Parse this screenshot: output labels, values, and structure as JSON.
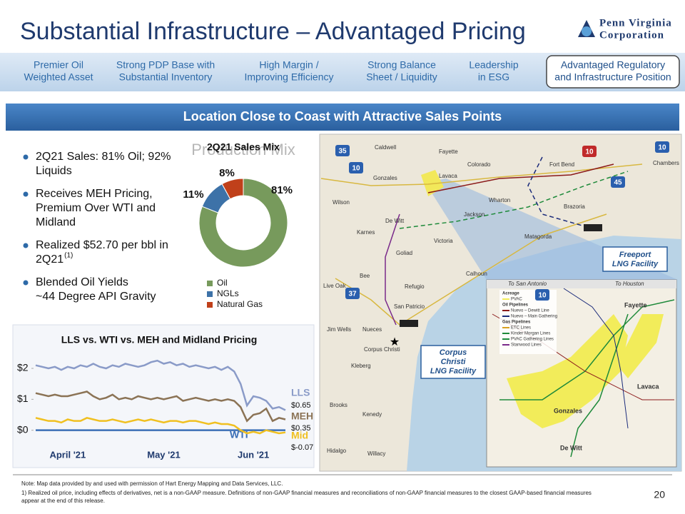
{
  "header": {
    "title": "Substantial Infrastructure – Advantaged Pricing",
    "logo": [
      "Penn Virginia",
      "Corporation"
    ]
  },
  "tabs": [
    [
      "Premier Oil",
      "Weighted Asset"
    ],
    [
      "Strong PDP Base with",
      "Substantial Inventory"
    ],
    [
      "High Margin /",
      "Improving Efficiency"
    ],
    [
      "Strong Balance",
      "Sheet / Liquidity"
    ],
    [
      "Leadership",
      "in ESG"
    ],
    [
      "Advantaged Regulatory",
      "and Infrastructure Position"
    ]
  ],
  "banner": "Location Close to Coast with Attractive Sales Points",
  "bullets": [
    [
      "2Q21 Sales: 81% Oil;   92%",
      "Liquids"
    ],
    [
      "Receives MEH Pricing,",
      "Premium Over WTI and",
      "Midland"
    ],
    [
      "Realized $52.70 per bbl in",
      "2Q21"
    ],
    [
      "Blended Oil Yields",
      "~44 Degree API Gravity"
    ]
  ],
  "bullet_footnote": "(1)",
  "chart_data": [
    {
      "type": "pie",
      "title": "2Q21 Sales Mix",
      "ghost_title": "Production Mix",
      "categories": [
        "Oil",
        "NGLs",
        "Natural Gas"
      ],
      "values": [
        81,
        11,
        8
      ],
      "value_labels": [
        "81%",
        "11%",
        "8%"
      ],
      "colors": [
        "#779a5c",
        "#3d72a8",
        "#c0401a"
      ]
    },
    {
      "type": "line",
      "title": "LLS vs. WTI vs. MEH and Midland Pricing",
      "categories": [
        null,
        null,
        null,
        null,
        null,
        "April '21",
        null,
        null,
        null,
        null,
        null,
        null,
        null,
        null,
        null,
        null,
        null,
        null,
        null,
        null,
        "May '21",
        null,
        null,
        null,
        null,
        null,
        null,
        null,
        null,
        null,
        null,
        null,
        null,
        null,
        "Jun '21",
        null,
        null,
        null,
        null,
        null
      ],
      "ylim": [
        -0.4,
        2.6
      ],
      "yticks": [
        {
          "value": 0,
          "label": "$0"
        },
        {
          "value": 1,
          "label": "$1"
        },
        {
          "value": 2,
          "label": "$2"
        }
      ],
      "series": [
        {
          "name": "LLS",
          "color": "#8a9bc8",
          "last_label": "$0.65",
          "values": [
            2.1,
            2.05,
            2.0,
            2.05,
            1.95,
            2.05,
            2.0,
            2.1,
            2.05,
            2.15,
            2.05,
            2.0,
            2.1,
            2.05,
            2.15,
            2.1,
            2.05,
            2.1,
            2.2,
            2.25,
            2.15,
            2.2,
            2.1,
            2.15,
            2.05,
            2.1,
            2.05,
            2.0,
            2.05,
            1.95,
            2.05,
            1.9,
            1.5,
            0.8,
            1.1,
            1.05,
            0.95,
            0.7,
            0.75,
            0.65
          ]
        },
        {
          "name": "MEH",
          "color": "#8b7355",
          "last_label": "$0.35",
          "values": [
            1.2,
            1.15,
            1.1,
            1.15,
            1.1,
            1.1,
            1.15,
            1.2,
            1.25,
            1.1,
            1.0,
            1.05,
            1.15,
            1.0,
            1.05,
            1.0,
            1.1,
            1.05,
            1.0,
            1.05,
            1.0,
            1.05,
            1.1,
            0.95,
            1.0,
            1.05,
            1.0,
            0.95,
            1.0,
            0.95,
            1.0,
            0.95,
            0.75,
            0.3,
            0.5,
            0.55,
            0.7,
            0.3,
            0.4,
            0.35
          ]
        },
        {
          "name": "WTI",
          "color": "#3b6fb6",
          "values": [
            0,
            0,
            0,
            0,
            0,
            0,
            0,
            0,
            0,
            0,
            0,
            0,
            0,
            0,
            0,
            0,
            0,
            0,
            0,
            0,
            0,
            0,
            0,
            0,
            0,
            0,
            0,
            0,
            0,
            0,
            0,
            0,
            0,
            0,
            0,
            0,
            0,
            0,
            0,
            0
          ]
        },
        {
          "name": "Mid",
          "color": "#f0c020",
          "last_label": "$-0.07",
          "values": [
            0.4,
            0.35,
            0.3,
            0.3,
            0.25,
            0.35,
            0.3,
            0.3,
            0.4,
            0.35,
            0.3,
            0.3,
            0.35,
            0.3,
            0.25,
            0.3,
            0.35,
            0.3,
            0.35,
            0.3,
            0.25,
            0.3,
            0.3,
            0.25,
            0.3,
            0.3,
            0.25,
            0.2,
            0.25,
            0.2,
            0.2,
            0.15,
            0.0,
            -0.1,
            -0.05,
            -0.1,
            0.0,
            -0.05,
            -0.1,
            -0.07
          ]
        }
      ]
    }
  ],
  "map": {
    "labels": [
      "Caldwell",
      "Fayette",
      "Colorado",
      "Fort Bend",
      "Chambers",
      "Gonzales",
      "Lavaca",
      "Wharton",
      "Wilson",
      "Jackson",
      "Brazoria",
      "De Witt",
      "Karnes",
      "Matagorda",
      "Victoria",
      "Goliad",
      "Calhoun",
      "Bee",
      "Live Oak",
      "Refugio",
      "San Patricio",
      "Nueces",
      "Jim Wells",
      "Corpus Christi",
      "Kleberg",
      "Brooks",
      "Kenedy",
      "Hidalgo",
      "Willacy"
    ],
    "shields": [
      "35",
      "10",
      "10",
      "10",
      "45",
      "37",
      "10"
    ],
    "callouts": [
      [
        "Freeport",
        "LNG Facility"
      ],
      [
        "Corpus",
        "Christi",
        "LNG Facility"
      ]
    ],
    "inset_labels": [
      "To San Antonio",
      "To Houston",
      "Fayette",
      "Lavaca",
      "Gonzales",
      "De Witt"
    ],
    "legend": [
      "Acreage",
      "PVAC",
      "Oil Pipelines",
      "Nuevo – Dewitt Line",
      "Nuevo – Main Gathering",
      "Gas Pipelines",
      "ETC Lines",
      "Kinder Morgan Lines",
      "PVAC Gathering Lines",
      "Stanwood Lines"
    ]
  },
  "notes": [
    "Note: Map data provided by and used with permission of Hart Energy Mapping and Data Services, LLC.",
    "1) Realized oil price, including effects of derivatives, net is a non-GAAP measure. Definitions of non-GAAP financial measures and reconciliations of non-GAAP financial measures to the closest GAAP-based financial measures",
    "appear at the end of this release."
  ],
  "page_number": "20"
}
